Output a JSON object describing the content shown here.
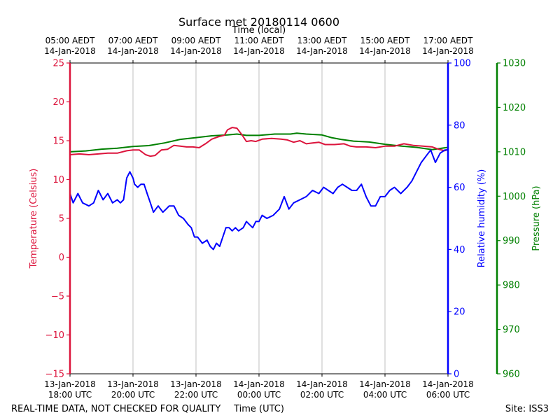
{
  "chart_data": {
    "type": "line",
    "title": "Surface met 20180114 0600",
    "top_axis_label": "Time (local)",
    "xlabel": "Time (UTC)",
    "bottom_left_note": "REAL-TIME DATA, NOT CHECKED FOR QUALITY",
    "bottom_right_note": "Site: ISS3",
    "x_range_utc_hours": [
      18.0,
      30.0
    ],
    "x_ticks": [
      {
        "h": 18,
        "bottom": [
          "13-Jan-2018",
          "18:00 UTC"
        ],
        "top": [
          "05:00 AEDT",
          "14-Jan-2018"
        ]
      },
      {
        "h": 20,
        "bottom": [
          "13-Jan-2018",
          "20:00 UTC"
        ],
        "top": [
          "07:00 AEDT",
          "14-Jan-2018"
        ]
      },
      {
        "h": 22,
        "bottom": [
          "13-Jan-2018",
          "22:00 UTC"
        ],
        "top": [
          "09:00 AEDT",
          "14-Jan-2018"
        ]
      },
      {
        "h": 24,
        "bottom": [
          "14-Jan-2018",
          "00:00 UTC"
        ],
        "top": [
          "11:00 AEDT",
          "14-Jan-2018"
        ]
      },
      {
        "h": 26,
        "bottom": [
          "14-Jan-2018",
          "02:00 UTC"
        ],
        "top": [
          "13:00 AEDT",
          "14-Jan-2018"
        ]
      },
      {
        "h": 28,
        "bottom": [
          "14-Jan-2018",
          "04:00 UTC"
        ],
        "top": [
          "15:00 AEDT",
          "14-Jan-2018"
        ]
      },
      {
        "h": 30,
        "bottom": [
          "14-Jan-2018",
          "06:00 UTC"
        ],
        "top": [
          "17:00 AEDT",
          "14-Jan-2018"
        ]
      }
    ],
    "axes": {
      "temperature": {
        "label": "Temperature (Celsius)",
        "range": [
          -15,
          25
        ],
        "ticks": [
          -15,
          -10,
          -5,
          0,
          5,
          10,
          15,
          20,
          25
        ],
        "tick_labels": [
          "−15",
          "−10",
          "−5",
          "0",
          "5",
          "10",
          "15",
          "20",
          "25"
        ],
        "color": "#dc143c"
      },
      "humidity": {
        "label": "Relative humidity (%)",
        "range": [
          0,
          100
        ],
        "ticks": [
          0,
          20,
          40,
          60,
          80,
          100
        ],
        "tick_labels": [
          "0",
          "20",
          "40",
          "60",
          "80",
          "100"
        ],
        "color": "#0000ff"
      },
      "pressure": {
        "label": "Pressure (hPa)",
        "range": [
          960,
          1030
        ],
        "ticks": [
          960,
          970,
          980,
          990,
          1000,
          1010,
          1020,
          1030
        ],
        "tick_labels": [
          "960",
          "970",
          "980",
          "990",
          "1000",
          "1010",
          "1020",
          "1030"
        ],
        "color": "#008000"
      }
    },
    "series": [
      {
        "name": "Temperature",
        "axis": "temperature",
        "color": "#dc143c",
        "x": [
          18.0,
          18.3,
          18.6,
          18.9,
          19.2,
          19.5,
          19.8,
          20.0,
          20.2,
          20.4,
          20.55,
          20.7,
          20.9,
          21.1,
          21.3,
          21.5,
          21.7,
          21.9,
          22.1,
          22.3,
          22.5,
          22.7,
          22.9,
          23.0,
          23.15,
          23.3,
          23.45,
          23.6,
          23.75,
          23.9,
          24.1,
          24.4,
          24.7,
          24.9,
          25.1,
          25.3,
          25.5,
          25.7,
          25.9,
          26.1,
          26.4,
          26.7,
          26.9,
          27.1,
          27.4,
          27.7,
          28.0,
          28.3,
          28.6,
          28.9,
          29.2,
          29.5,
          29.7,
          29.9,
          30.0
        ],
        "values": [
          13.2,
          13.3,
          13.2,
          13.3,
          13.4,
          13.4,
          13.7,
          13.8,
          13.8,
          13.2,
          13.0,
          13.1,
          13.8,
          13.9,
          14.4,
          14.3,
          14.2,
          14.2,
          14.1,
          14.6,
          15.2,
          15.5,
          15.7,
          16.4,
          16.7,
          16.6,
          15.8,
          14.9,
          15.0,
          14.9,
          15.2,
          15.3,
          15.2,
          15.1,
          14.8,
          15.0,
          14.6,
          14.7,
          14.8,
          14.5,
          14.5,
          14.6,
          14.3,
          14.2,
          14.2,
          14.1,
          14.3,
          14.3,
          14.6,
          14.4,
          14.3,
          14.2,
          13.9,
          13.7,
          13.9
        ]
      },
      {
        "name": "Relative humidity",
        "axis": "humidity",
        "color": "#0000ff",
        "x": [
          18.0,
          18.1,
          18.25,
          18.4,
          18.6,
          18.75,
          18.9,
          19.05,
          19.2,
          19.35,
          19.5,
          19.6,
          19.7,
          19.8,
          19.9,
          20.0,
          20.05,
          20.15,
          20.25,
          20.35,
          20.45,
          20.55,
          20.65,
          20.8,
          20.95,
          21.05,
          21.15,
          21.3,
          21.45,
          21.6,
          21.75,
          21.85,
          21.95,
          22.05,
          22.2,
          22.35,
          22.45,
          22.55,
          22.65,
          22.75,
          22.85,
          22.95,
          23.05,
          23.15,
          23.25,
          23.35,
          23.5,
          23.6,
          23.7,
          23.8,
          23.9,
          24.0,
          24.1,
          24.25,
          24.45,
          24.65,
          24.8,
          24.95,
          25.1,
          25.3,
          25.5,
          25.7,
          25.9,
          26.05,
          26.2,
          26.35,
          26.5,
          26.65,
          26.8,
          26.95,
          27.1,
          27.25,
          27.4,
          27.55,
          27.7,
          27.85,
          28.0,
          28.15,
          28.3,
          28.5,
          28.7,
          28.85,
          29.0,
          29.15,
          29.3,
          29.45,
          29.6,
          29.75,
          29.9,
          30.0
        ],
        "values": [
          58,
          55,
          58,
          55,
          54,
          55,
          59,
          56,
          58,
          55,
          56,
          55,
          56,
          63,
          65,
          63,
          61,
          60,
          61,
          61,
          58,
          55,
          52,
          54,
          52,
          53,
          54,
          54,
          51,
          50,
          48,
          47,
          44,
          44,
          42,
          43,
          41,
          40,
          42,
          41,
          44,
          47,
          47,
          46,
          47,
          46,
          47,
          49,
          48,
          47,
          49,
          49,
          51,
          50,
          51,
          53,
          57,
          53,
          55,
          56,
          57,
          59,
          58,
          60,
          59,
          58,
          60,
          61,
          60,
          59,
          59,
          61,
          57,
          54,
          54,
          57,
          57,
          59,
          60,
          58,
          60,
          62,
          65,
          68,
          70,
          72,
          68,
          71,
          72,
          72
        ]
      },
      {
        "name": "Pressure",
        "axis": "pressure",
        "color": "#008000",
        "x": [
          18.0,
          18.5,
          19.0,
          19.5,
          20.0,
          20.5,
          21.0,
          21.5,
          22.0,
          22.5,
          23.0,
          23.3,
          23.6,
          24.0,
          24.5,
          25.0,
          25.2,
          25.5,
          26.0,
          26.3,
          26.6,
          27.0,
          27.5,
          28.0,
          28.5,
          29.0,
          29.5,
          30.0
        ],
        "values": [
          1010.0,
          1010.2,
          1010.6,
          1010.8,
          1011.2,
          1011.4,
          1012.0,
          1012.8,
          1013.2,
          1013.6,
          1013.8,
          1014.0,
          1013.7,
          1013.7,
          1014.0,
          1014.0,
          1014.2,
          1014.0,
          1013.8,
          1013.2,
          1012.8,
          1012.4,
          1012.2,
          1011.7,
          1011.3,
          1011.0,
          1010.5,
          1011.0
        ]
      }
    ]
  }
}
